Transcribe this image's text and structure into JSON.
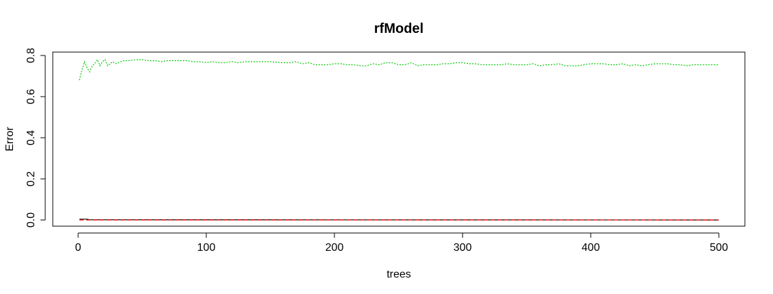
{
  "chart_data": {
    "type": "line",
    "title": "rfModel",
    "xlabel": "trees",
    "ylabel": "Error",
    "xlim": [
      0,
      500
    ],
    "ylim": [
      0,
      0.8
    ],
    "xticks": [
      0,
      100,
      200,
      300,
      400,
      500
    ],
    "yticks": [
      0.0,
      0.2,
      0.4,
      0.6,
      0.8
    ],
    "xtick_labels": [
      "0",
      "100",
      "200",
      "300",
      "400",
      "500"
    ],
    "ytick_labels": [
      "0.0",
      "0.2",
      "0.4",
      "0.6",
      "0.8"
    ],
    "grid": false,
    "series": [
      {
        "color": "#00cc00",
        "dash": "dotted",
        "x": [
          1,
          3,
          5,
          7,
          9,
          11,
          13,
          15,
          17,
          19,
          21,
          23,
          25,
          27,
          30,
          33,
          36,
          40,
          45,
          50,
          55,
          60,
          65,
          70,
          75,
          80,
          85,
          90,
          95,
          100,
          105,
          110,
          115,
          120,
          125,
          130,
          140,
          150,
          160,
          165,
          170,
          175,
          180,
          185,
          190,
          195,
          200,
          205,
          210,
          215,
          220,
          225,
          230,
          235,
          240,
          245,
          250,
          255,
          260,
          265,
          270,
          275,
          280,
          285,
          290,
          295,
          300,
          305,
          310,
          315,
          320,
          325,
          330,
          335,
          340,
          345,
          350,
          355,
          360,
          365,
          370,
          375,
          380,
          385,
          390,
          395,
          400,
          405,
          410,
          415,
          420,
          425,
          430,
          435,
          440,
          445,
          450,
          455,
          460,
          465,
          470,
          475,
          480,
          485,
          490,
          495,
          500
        ],
        "y": [
          0.68,
          0.73,
          0.77,
          0.74,
          0.72,
          0.75,
          0.76,
          0.78,
          0.75,
          0.77,
          0.78,
          0.75,
          0.76,
          0.77,
          0.76,
          0.77,
          0.775,
          0.775,
          0.78,
          0.78,
          0.775,
          0.775,
          0.77,
          0.775,
          0.775,
          0.775,
          0.775,
          0.77,
          0.77,
          0.765,
          0.77,
          0.765,
          0.765,
          0.77,
          0.765,
          0.77,
          0.77,
          0.77,
          0.765,
          0.765,
          0.77,
          0.76,
          0.765,
          0.755,
          0.755,
          0.755,
          0.76,
          0.76,
          0.755,
          0.755,
          0.75,
          0.75,
          0.76,
          0.755,
          0.765,
          0.765,
          0.755,
          0.755,
          0.765,
          0.75,
          0.755,
          0.755,
          0.755,
          0.76,
          0.76,
          0.765,
          0.765,
          0.76,
          0.76,
          0.755,
          0.755,
          0.755,
          0.755,
          0.76,
          0.755,
          0.755,
          0.755,
          0.76,
          0.75,
          0.755,
          0.755,
          0.76,
          0.75,
          0.75,
          0.75,
          0.755,
          0.76,
          0.76,
          0.76,
          0.755,
          0.755,
          0.76,
          0.75,
          0.755,
          0.75,
          0.755,
          0.76,
          0.76,
          0.76,
          0.755,
          0.755,
          0.75,
          0.755,
          0.755,
          0.755,
          0.755,
          0.755
        ]
      },
      {
        "color": "#000000",
        "dash": "solid",
        "x": [
          1,
          3,
          5,
          7,
          9,
          500
        ],
        "y": [
          0.004,
          0.004,
          0.004,
          0.004,
          0.001,
          0.0
        ]
      },
      {
        "color": "#ff0000",
        "dash": "dashed",
        "x": [
          1,
          5,
          10,
          500
        ],
        "y": [
          0.0,
          0.0,
          0.0,
          0.0
        ]
      }
    ]
  }
}
